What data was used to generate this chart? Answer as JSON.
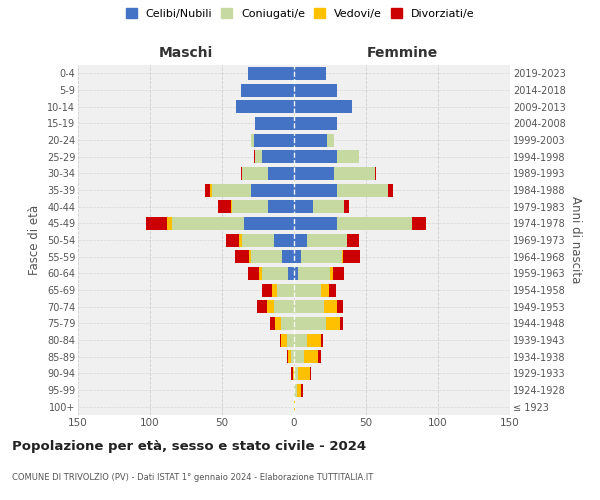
{
  "age_groups": [
    "100+",
    "95-99",
    "90-94",
    "85-89",
    "80-84",
    "75-79",
    "70-74",
    "65-69",
    "60-64",
    "55-59",
    "50-54",
    "45-49",
    "40-44",
    "35-39",
    "30-34",
    "25-29",
    "20-24",
    "15-19",
    "10-14",
    "5-9",
    "0-4"
  ],
  "birth_years": [
    "≤ 1923",
    "1924-1928",
    "1929-1933",
    "1934-1938",
    "1939-1943",
    "1944-1948",
    "1949-1953",
    "1954-1958",
    "1959-1963",
    "1964-1968",
    "1969-1973",
    "1974-1978",
    "1979-1983",
    "1984-1988",
    "1989-1993",
    "1994-1998",
    "1999-2003",
    "2004-2008",
    "2009-2013",
    "2014-2018",
    "2019-2023"
  ],
  "males": {
    "celibi": [
      0,
      0,
      0,
      0,
      0,
      0,
      0,
      0,
      4,
      8,
      14,
      35,
      18,
      30,
      18,
      22,
      28,
      27,
      40,
      37,
      32
    ],
    "coniugati": [
      0,
      0,
      0,
      2,
      5,
      9,
      14,
      12,
      18,
      22,
      22,
      50,
      25,
      27,
      18,
      5,
      2,
      0,
      0,
      0,
      0
    ],
    "vedovi": [
      0,
      0,
      1,
      2,
      4,
      4,
      5,
      3,
      2,
      1,
      2,
      3,
      1,
      1,
      0,
      0,
      0,
      0,
      0,
      0,
      0
    ],
    "divorziati": [
      0,
      0,
      1,
      1,
      1,
      4,
      7,
      7,
      8,
      10,
      9,
      15,
      9,
      4,
      1,
      1,
      0,
      0,
      0,
      0,
      0
    ]
  },
  "females": {
    "nubili": [
      0,
      0,
      0,
      0,
      0,
      0,
      0,
      0,
      3,
      5,
      9,
      30,
      13,
      30,
      28,
      30,
      23,
      30,
      40,
      30,
      22
    ],
    "coniugate": [
      0,
      2,
      3,
      7,
      9,
      22,
      21,
      19,
      22,
      28,
      28,
      52,
      22,
      35,
      28,
      15,
      5,
      0,
      0,
      0,
      0
    ],
    "vedove": [
      1,
      3,
      8,
      10,
      10,
      10,
      9,
      5,
      2,
      1,
      0,
      0,
      0,
      0,
      0,
      0,
      0,
      0,
      0,
      0,
      0
    ],
    "divorziate": [
      0,
      1,
      1,
      2,
      1,
      2,
      4,
      5,
      8,
      12,
      8,
      10,
      3,
      4,
      1,
      0,
      0,
      0,
      0,
      0,
      0
    ]
  },
  "colors": {
    "celibi": "#4472c4",
    "coniugati": "#c5d9a0",
    "vedovi": "#ffc000",
    "divorziati": "#cc0000"
  },
  "title": "Popolazione per età, sesso e stato civile - 2024",
  "subtitle": "COMUNE DI TRIVOLZIO (PV) - Dati ISTAT 1° gennaio 2024 - Elaborazione TUTTITALIA.IT",
  "xlabel_left": "Maschi",
  "xlabel_right": "Femmine",
  "ylabel_left": "Fasce di età",
  "ylabel_right": "Anni di nascita",
  "xlim": 150,
  "legend_labels": [
    "Celibi/Nubili",
    "Coniugati/e",
    "Vedovi/e",
    "Divorziati/e"
  ],
  "background_color": "#ffffff",
  "plot_bg_color": "#f0f0f0",
  "grid_color": "#cccccc"
}
